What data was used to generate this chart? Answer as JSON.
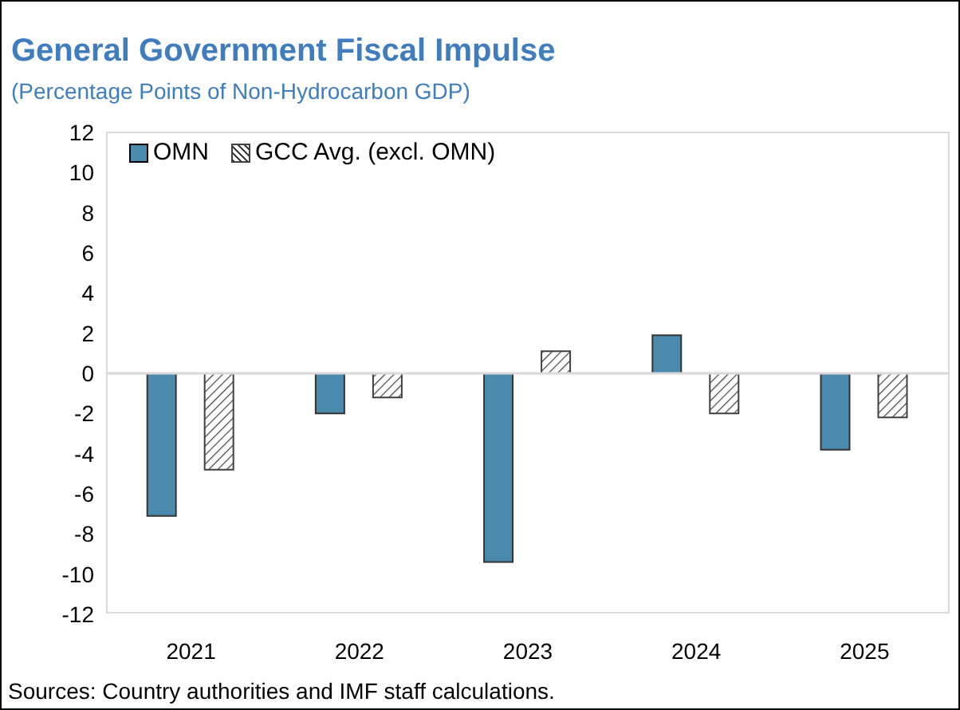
{
  "chart_data": {
    "type": "bar",
    "title": "General Government Fiscal Impulse",
    "subtitle": "(Percentage Points of Non-Hydrocarbon GDP)",
    "categories": [
      "2021",
      "2022",
      "2023",
      "2024",
      "2025"
    ],
    "series": [
      {
        "name": "OMN",
        "color": "#4a8bad",
        "values": [
          -7.1,
          -2.0,
          -9.4,
          1.9,
          -3.8
        ]
      },
      {
        "name": "GCC Avg. (excl. OMN)",
        "color": "#404040",
        "values": [
          -4.8,
          -1.2,
          1.1,
          -2.0,
          -2.2
        ]
      }
    ],
    "ylim": [
      -12,
      12
    ],
    "yticks": [
      -12,
      -10,
      -8,
      -6,
      -4,
      -2,
      0,
      2,
      4,
      6,
      8,
      10,
      12
    ],
    "ref_lines": [
      {
        "axis": "y",
        "value": 0,
        "color": "#d9d9d9"
      }
    ],
    "legend": "top left",
    "annotations": [
      "Sources: Country authorities and IMF staff calculations."
    ]
  }
}
